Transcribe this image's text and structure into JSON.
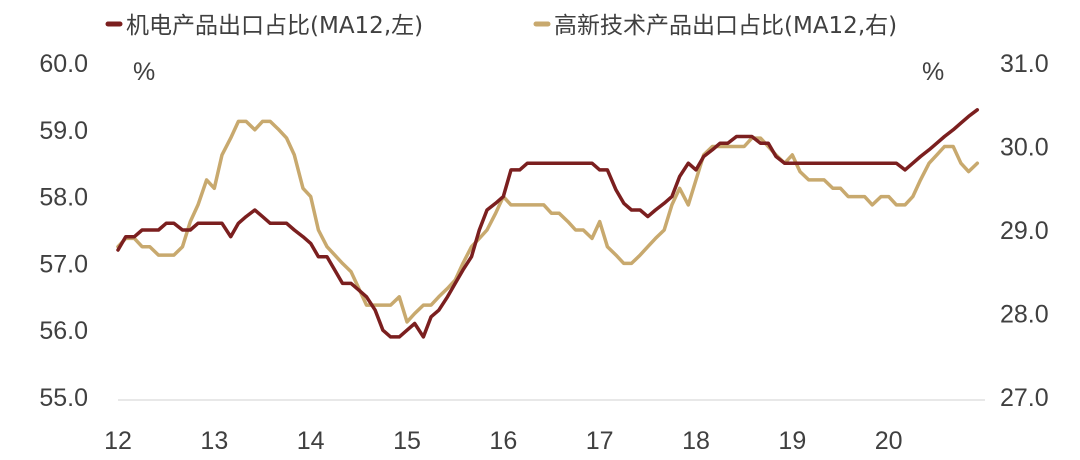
{
  "chart_data": {
    "type": "line",
    "x_tick_labels": [
      "12",
      "13",
      "14",
      "15",
      "16",
      "17",
      "18",
      "19",
      "20"
    ],
    "x_range": [
      2012.0,
      2021.0
    ],
    "y_left": {
      "ticks": [
        "55.0",
        "56.0",
        "57.0",
        "58.0",
        "59.0",
        "60.0"
      ],
      "range": [
        55.0,
        60.0
      ],
      "unit": "%"
    },
    "y_right": {
      "ticks": [
        "27.0",
        "28.0",
        "29.0",
        "30.0",
        "31.0"
      ],
      "range": [
        27.0,
        31.0
      ],
      "unit": "%"
    },
    "grid": false,
    "legend_position": "top",
    "series": [
      {
        "name": "机电产品出口占比(MA12,左)",
        "axis": "left",
        "color": "#7b1f1f",
        "x": [
          2012.0,
          2012.08,
          2012.17,
          2012.25,
          2012.33,
          2012.42,
          2012.5,
          2012.58,
          2012.67,
          2012.75,
          2012.83,
          2012.92,
          2013.0,
          2013.08,
          2013.17,
          2013.25,
          2013.33,
          2013.42,
          2013.5,
          2013.58,
          2013.67,
          2013.75,
          2013.83,
          2013.92,
          2014.0,
          2014.08,
          2014.17,
          2014.25,
          2014.33,
          2014.42,
          2014.5,
          2014.58,
          2014.67,
          2014.75,
          2014.83,
          2014.92,
          2015.0,
          2015.08,
          2015.17,
          2015.25,
          2015.33,
          2015.42,
          2015.5,
          2015.58,
          2015.67,
          2015.75,
          2015.83,
          2015.92,
          2016.0,
          2016.08,
          2016.17,
          2016.25,
          2016.33,
          2016.42,
          2016.5,
          2016.58,
          2016.67,
          2016.75,
          2016.83,
          2016.92,
          2017.0,
          2017.08,
          2017.17,
          2017.25,
          2017.33,
          2017.42,
          2017.5,
          2017.58,
          2017.67,
          2017.75,
          2017.83,
          2017.92,
          2018.0,
          2018.08,
          2018.17,
          2018.25,
          2018.33,
          2018.42,
          2018.5,
          2018.58,
          2018.67,
          2018.75,
          2018.83,
          2018.92,
          2019.0,
          2019.08,
          2019.17,
          2019.25,
          2019.33,
          2019.42,
          2019.5,
          2019.58,
          2019.67,
          2019.75,
          2019.83,
          2019.92,
          2020.0,
          2020.08,
          2020.17,
          2020.25,
          2020.33,
          2020.42,
          2020.5,
          2020.58,
          2020.67,
          2020.75,
          2020.83,
          2020.92
        ],
        "y": [
          57.2,
          57.4,
          57.4,
          57.5,
          57.5,
          57.5,
          57.6,
          57.6,
          57.5,
          57.5,
          57.6,
          57.6,
          57.6,
          57.6,
          57.4,
          57.6,
          57.7,
          57.8,
          57.7,
          57.6,
          57.6,
          57.6,
          57.5,
          57.4,
          57.3,
          57.1,
          57.1,
          56.9,
          56.7,
          56.7,
          56.6,
          56.5,
          56.3,
          56.0,
          55.9,
          55.9,
          56.0,
          56.1,
          55.9,
          56.2,
          56.3,
          56.5,
          56.7,
          56.9,
          57.1,
          57.5,
          57.8,
          57.9,
          58.0,
          58.4,
          58.4,
          58.5,
          58.5,
          58.5,
          58.5,
          58.5,
          58.5,
          58.5,
          58.5,
          58.5,
          58.4,
          58.4,
          58.1,
          57.9,
          57.8,
          57.8,
          57.7,
          57.8,
          57.9,
          58.0,
          58.3,
          58.5,
          58.4,
          58.6,
          58.7,
          58.8,
          58.8,
          58.9,
          58.9,
          58.9,
          58.8,
          58.8,
          58.6,
          58.5,
          58.5,
          58.5,
          58.5,
          58.5,
          58.5,
          58.5,
          58.5,
          58.5,
          58.5,
          58.5,
          58.5,
          58.5,
          58.5,
          58.5,
          58.4,
          58.5,
          58.6,
          58.7,
          58.8,
          58.9,
          59.0,
          59.1,
          59.2,
          59.3
        ]
      },
      {
        "name": "高新技术产品出口占比(MA12,右)",
        "axis": "right",
        "color": "#c8a96e",
        "x": [
          2012.0,
          2012.08,
          2012.17,
          2012.25,
          2012.33,
          2012.42,
          2012.5,
          2012.58,
          2012.67,
          2012.75,
          2012.83,
          2012.92,
          2013.0,
          2013.08,
          2013.17,
          2013.25,
          2013.33,
          2013.42,
          2013.5,
          2013.58,
          2013.67,
          2013.75,
          2013.83,
          2013.92,
          2014.0,
          2014.08,
          2014.17,
          2014.25,
          2014.33,
          2014.42,
          2014.5,
          2014.58,
          2014.67,
          2014.75,
          2014.83,
          2014.92,
          2015.0,
          2015.08,
          2015.17,
          2015.25,
          2015.33,
          2015.42,
          2015.5,
          2015.58,
          2015.67,
          2015.75,
          2015.83,
          2015.92,
          2016.0,
          2016.08,
          2016.17,
          2016.25,
          2016.33,
          2016.42,
          2016.5,
          2016.58,
          2016.67,
          2016.75,
          2016.83,
          2016.92,
          2017.0,
          2017.08,
          2017.17,
          2017.25,
          2017.33,
          2017.42,
          2017.5,
          2017.58,
          2017.67,
          2017.75,
          2017.83,
          2017.92,
          2018.0,
          2018.08,
          2018.17,
          2018.25,
          2018.33,
          2018.42,
          2018.5,
          2018.58,
          2018.67,
          2018.75,
          2018.83,
          2018.92,
          2019.0,
          2019.08,
          2019.17,
          2019.25,
          2019.33,
          2019.42,
          2019.5,
          2019.58,
          2019.67,
          2019.75,
          2019.83,
          2019.92,
          2020.0,
          2020.08,
          2020.17,
          2020.25,
          2020.33,
          2020.42,
          2020.5,
          2020.58,
          2020.67,
          2020.75,
          2020.83,
          2020.92
        ],
        "y": [
          28.8,
          28.9,
          28.9,
          28.8,
          28.8,
          28.7,
          28.7,
          28.7,
          28.8,
          29.1,
          29.3,
          29.6,
          29.5,
          29.9,
          30.1,
          30.3,
          30.3,
          30.2,
          30.3,
          30.3,
          30.2,
          30.1,
          29.9,
          29.5,
          29.4,
          29.0,
          28.8,
          28.7,
          28.6,
          28.5,
          28.3,
          28.1,
          28.1,
          28.1,
          28.1,
          28.2,
          27.9,
          28.0,
          28.1,
          28.1,
          28.2,
          28.3,
          28.4,
          28.6,
          28.8,
          28.9,
          29.0,
          29.2,
          29.4,
          29.3,
          29.3,
          29.3,
          29.3,
          29.3,
          29.2,
          29.2,
          29.1,
          29.0,
          29.0,
          28.9,
          29.1,
          28.8,
          28.7,
          28.6,
          28.6,
          28.7,
          28.8,
          28.9,
          29.0,
          29.3,
          29.5,
          29.3,
          29.6,
          29.9,
          30.0,
          30.0,
          30.0,
          30.0,
          30.0,
          30.1,
          30.1,
          30.0,
          29.9,
          29.8,
          29.9,
          29.7,
          29.6,
          29.6,
          29.6,
          29.5,
          29.5,
          29.4,
          29.4,
          29.4,
          29.3,
          29.4,
          29.4,
          29.3,
          29.3,
          29.4,
          29.6,
          29.8,
          29.9,
          30.0,
          30.0,
          29.8,
          29.7,
          29.8
        ]
      }
    ]
  }
}
